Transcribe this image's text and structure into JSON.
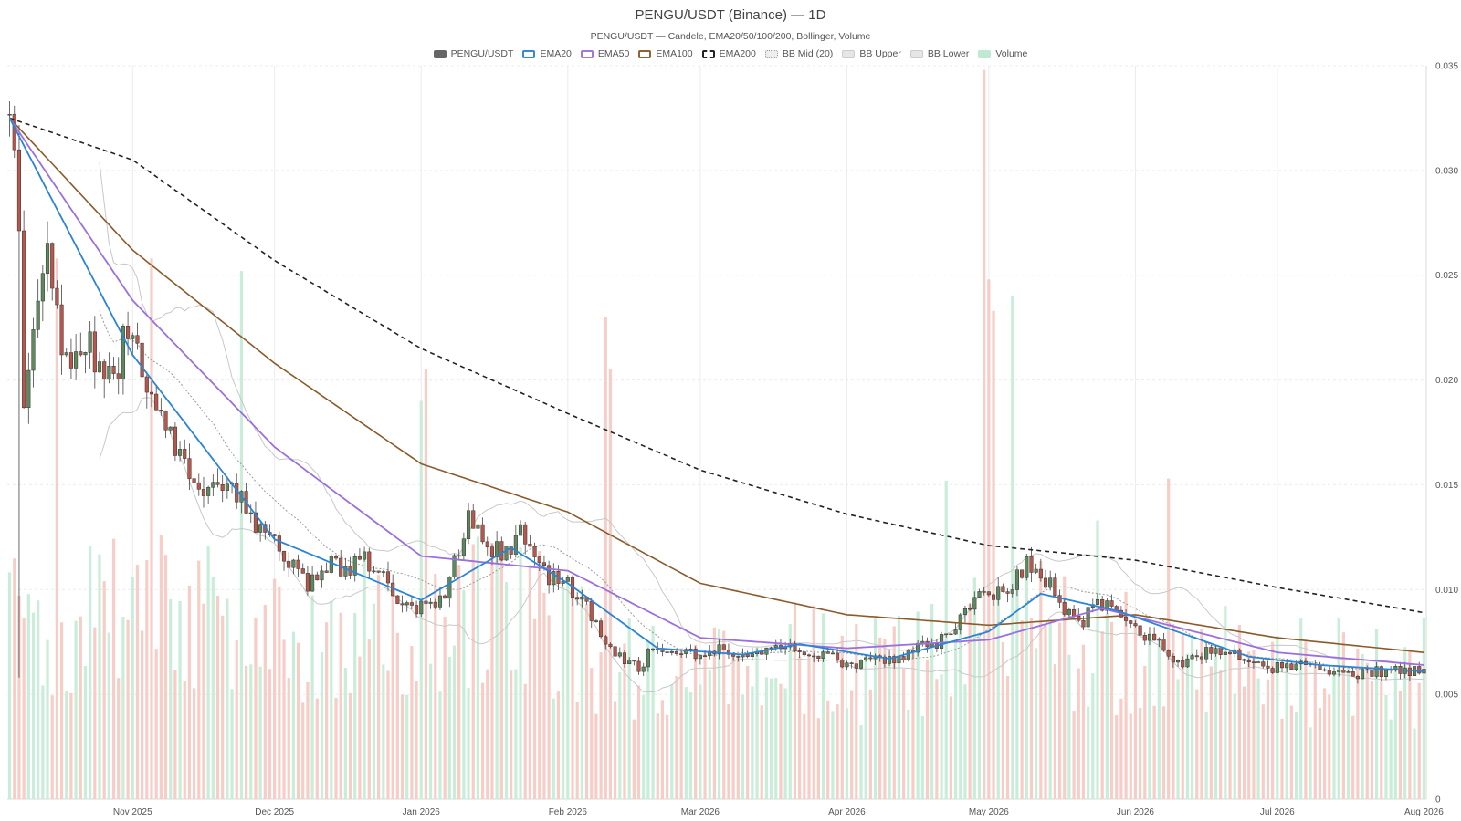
{
  "chart": {
    "title": "PENGU/USDT (Binance) — 1D",
    "subtitle": "PENGU/USDT — Candele, EMA20/50/100/200, Bollinger, Volume"
  },
  "legend": [
    {
      "label": "PENGU/USDT",
      "color": "#666666",
      "style": "solid"
    },
    {
      "label": "EMA20",
      "color": "#2b84d6",
      "style": "outline"
    },
    {
      "label": "EMA50",
      "color": "#9b6fe0",
      "style": "outline"
    },
    {
      "label": "EMA100",
      "color": "#8b5a2b",
      "style": "outline"
    },
    {
      "label": "EMA200",
      "color": "#222222",
      "style": "dashed"
    },
    {
      "label": "BB Mid (20)",
      "color": "#bbbbbb",
      "style": "dotted"
    },
    {
      "label": "BB Upper",
      "color": "#cccccc",
      "style": "solid-light"
    },
    {
      "label": "BB Lower",
      "color": "#cccccc",
      "style": "solid-light"
    },
    {
      "label": "Volume",
      "color": "#bfe9d2",
      "style": "fill"
    }
  ],
  "chart_data": {
    "type": "candlestick",
    "x_start": "2025-10-06",
    "x_end": "2026-08-01",
    "x_ticks": [
      {
        "date": "2025-11-01",
        "label": "Nov 2025"
      },
      {
        "date": "2025-12-01",
        "label": "Dec 2025"
      },
      {
        "date": "2026-01-01",
        "label": "Jan 2026"
      },
      {
        "date": "2026-02-01",
        "label": "Feb 2026"
      },
      {
        "date": "2026-03-01",
        "label": "Mar 2026"
      },
      {
        "date": "2026-04-01",
        "label": "Apr 2026"
      },
      {
        "date": "2026-05-01",
        "label": "May 2026"
      },
      {
        "date": "2026-06-01",
        "label": "Jun 2026"
      },
      {
        "date": "2026-07-01",
        "label": "Jul 2026"
      },
      {
        "date": "2026-08-01",
        "label": "Aug 2026"
      }
    ],
    "y_range": [
      0,
      0.035
    ],
    "y_ticks": [
      0,
      0.005,
      0.01,
      0.015,
      0.02,
      0.025,
      0.03,
      0.035
    ],
    "y_tick_labels": [
      "0",
      "0.005",
      "0.010",
      "0.015",
      "0.020",
      "0.025",
      "0.030",
      "0.035"
    ],
    "y_axis_side": "right",
    "grid": true,
    "legend_position": "top-center",
    "colors": {
      "up": "#5c8a5e",
      "down": "#b5574a",
      "vol_up": "#c6ecd6",
      "vol_down": "#f6cac4"
    },
    "close_anchors": [
      [
        "2025-10-06",
        0.0325
      ],
      [
        "2025-10-08",
        0.028
      ],
      [
        "2025-10-09",
        0.019
      ],
      [
        "2025-10-12",
        0.023
      ],
      [
        "2025-10-14",
        0.026
      ],
      [
        "2025-10-17",
        0.022
      ],
      [
        "2025-10-20",
        0.0205
      ],
      [
        "2025-10-23",
        0.0215
      ],
      [
        "2025-10-28",
        0.02
      ],
      [
        "2025-10-31",
        0.0225
      ],
      [
        "2025-11-03",
        0.021
      ],
      [
        "2025-11-06",
        0.018
      ],
      [
        "2025-11-10",
        0.017
      ],
      [
        "2025-11-14",
        0.015
      ],
      [
        "2025-11-18",
        0.0145
      ],
      [
        "2025-11-22",
        0.0155
      ],
      [
        "2025-11-25",
        0.0135
      ],
      [
        "2025-11-30",
        0.0125
      ],
      [
        "2025-12-04",
        0.0112
      ],
      [
        "2025-12-08",
        0.0102
      ],
      [
        "2025-12-12",
        0.0112
      ],
      [
        "2025-12-16",
        0.0108
      ],
      [
        "2025-12-19",
        0.0118
      ],
      [
        "2025-12-22",
        0.011
      ],
      [
        "2025-12-26",
        0.0098
      ],
      [
        "2025-12-30",
        0.0092
      ],
      [
        "2026-01-02",
        0.0093
      ],
      [
        "2026-01-06",
        0.0095
      ],
      [
        "2026-01-08",
        0.0115
      ],
      [
        "2026-01-11",
        0.0132
      ],
      [
        "2026-01-15",
        0.0122
      ],
      [
        "2026-01-19",
        0.0118
      ],
      [
        "2026-01-22",
        0.013
      ],
      [
        "2026-01-25",
        0.0118
      ],
      [
        "2026-01-28",
        0.0105
      ],
      [
        "2026-02-01",
        0.0102
      ],
      [
        "2026-02-04",
        0.0098
      ],
      [
        "2026-02-08",
        0.008
      ],
      [
        "2026-02-12",
        0.0068
      ],
      [
        "2026-02-16",
        0.0062
      ],
      [
        "2026-02-19",
        0.0072
      ],
      [
        "2026-02-23",
        0.0068
      ],
      [
        "2026-03-01",
        0.007
      ],
      [
        "2026-03-07",
        0.0072
      ],
      [
        "2026-03-12",
        0.0068
      ],
      [
        "2026-03-19",
        0.0075
      ],
      [
        "2026-03-25",
        0.007
      ],
      [
        "2026-04-01",
        0.0065
      ],
      [
        "2026-04-08",
        0.0066
      ],
      [
        "2026-04-14",
        0.007
      ],
      [
        "2026-04-20",
        0.0075
      ],
      [
        "2026-04-25",
        0.0085
      ],
      [
        "2026-04-30",
        0.01
      ],
      [
        "2026-05-05",
        0.0098
      ],
      [
        "2026-05-09",
        0.0112
      ],
      [
        "2026-05-13",
        0.0105
      ],
      [
        "2026-05-17",
        0.009
      ],
      [
        "2026-05-21",
        0.0086
      ],
      [
        "2026-05-24",
        0.0093
      ],
      [
        "2026-05-28",
        0.009
      ],
      [
        "2026-06-02",
        0.008
      ],
      [
        "2026-06-06",
        0.0075
      ],
      [
        "2026-06-10",
        0.0065
      ],
      [
        "2026-06-14",
        0.0068
      ],
      [
        "2026-06-19",
        0.0072
      ],
      [
        "2026-06-24",
        0.0066
      ],
      [
        "2026-06-30",
        0.0062
      ],
      [
        "2026-07-06",
        0.0065
      ],
      [
        "2026-07-12",
        0.0062
      ],
      [
        "2026-07-18",
        0.006
      ],
      [
        "2026-07-24",
        0.0061
      ],
      [
        "2026-08-01",
        0.0061
      ]
    ],
    "volume_spikes": [
      [
        "2025-10-16",
        0.0258
      ],
      [
        "2025-11-05",
        0.0258
      ],
      [
        "2025-11-24",
        0.0252
      ],
      [
        "2026-01-01",
        0.019
      ],
      [
        "2026-01-02",
        0.0205
      ],
      [
        "2026-02-09",
        0.023
      ],
      [
        "2026-02-10",
        0.0205
      ],
      [
        "2026-04-30",
        0.0348
      ],
      [
        "2026-05-01",
        0.0248
      ],
      [
        "2026-05-02",
        0.0233
      ],
      [
        "2026-05-06",
        0.024
      ],
      [
        "2026-06-08",
        0.0153
      ],
      [
        "2026-05-24",
        0.0133
      ],
      [
        "2026-04-22",
        0.0152
      ]
    ],
    "ema200": [
      [
        "2025-10-06",
        0.0325
      ],
      [
        "2025-11-01",
        0.0305
      ],
      [
        "2025-12-01",
        0.0257
      ],
      [
        "2026-01-01",
        0.0215
      ],
      [
        "2026-02-01",
        0.0184
      ],
      [
        "2026-03-01",
        0.0157
      ],
      [
        "2026-04-01",
        0.0136
      ],
      [
        "2026-05-01",
        0.0121
      ],
      [
        "2026-06-01",
        0.0114
      ],
      [
        "2026-07-01",
        0.0101
      ],
      [
        "2026-08-01",
        0.0089
      ]
    ],
    "ema100": [
      [
        "2025-10-06",
        0.0325
      ],
      [
        "2025-11-01",
        0.0262
      ],
      [
        "2025-12-01",
        0.0208
      ],
      [
        "2026-01-01",
        0.016
      ],
      [
        "2026-02-01",
        0.0137
      ],
      [
        "2026-03-01",
        0.0103
      ],
      [
        "2026-04-01",
        0.0088
      ],
      [
        "2026-05-01",
        0.0083
      ],
      [
        "2026-06-01",
        0.0088
      ],
      [
        "2026-07-01",
        0.0077
      ],
      [
        "2026-08-01",
        0.007
      ]
    ],
    "ema50": [
      [
        "2025-10-06",
        0.0325
      ],
      [
        "2025-11-01",
        0.0238
      ],
      [
        "2025-12-01",
        0.0168
      ],
      [
        "2026-01-01",
        0.0116
      ],
      [
        "2026-02-01",
        0.0109
      ],
      [
        "2026-03-01",
        0.0077
      ],
      [
        "2026-04-01",
        0.0072
      ],
      [
        "2026-05-01",
        0.0076
      ],
      [
        "2026-05-25",
        0.0091
      ],
      [
        "2026-07-01",
        0.007
      ],
      [
        "2026-08-01",
        0.0064
      ]
    ],
    "ema20": [
      [
        "2025-10-06",
        0.0325
      ],
      [
        "2025-11-01",
        0.0212
      ],
      [
        "2025-12-01",
        0.0124
      ],
      [
        "2026-01-01",
        0.0095
      ],
      [
        "2026-01-20",
        0.012
      ],
      [
        "2026-02-01",
        0.0103
      ],
      [
        "2026-02-20",
        0.0072
      ],
      [
        "2026-03-10",
        0.0069
      ],
      [
        "2026-03-22",
        0.0074
      ],
      [
        "2026-04-10",
        0.0067
      ],
      [
        "2026-05-01",
        0.008
      ],
      [
        "2026-05-12",
        0.0098
      ],
      [
        "2026-05-28",
        0.009
      ],
      [
        "2026-06-25",
        0.0068
      ],
      [
        "2026-07-10",
        0.0064
      ],
      [
        "2026-08-01",
        0.0061
      ]
    ]
  }
}
